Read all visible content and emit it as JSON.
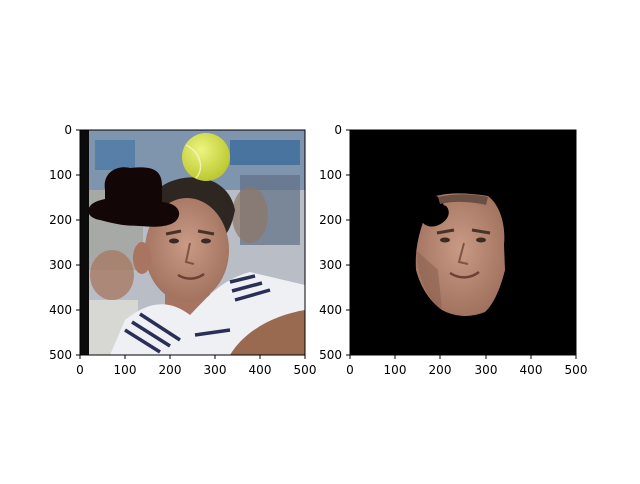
{
  "panels": [
    {
      "name": "left",
      "content": "tennis player photo with hat overlay and tennis ball",
      "x_ticks": [
        "0",
        "100",
        "200",
        "300",
        "400",
        "500"
      ],
      "y_ticks": [
        "0",
        "100",
        "200",
        "300",
        "400",
        "500"
      ],
      "xlim": [
        0,
        500
      ],
      "ylim": [
        500,
        0
      ]
    },
    {
      "name": "right",
      "content": "segmented face on black background",
      "x_ticks": [
        "0",
        "100",
        "200",
        "300",
        "400",
        "500"
      ],
      "y_ticks": [
        "0",
        "100",
        "200",
        "300",
        "400",
        "500"
      ],
      "xlim": [
        0,
        500
      ],
      "ylim": [
        500,
        0
      ]
    }
  ],
  "colors": {
    "background": "#ffffff",
    "mask": "#000000",
    "hat": "#120606",
    "ball": "#d4e04a",
    "skin": "#b98972",
    "shirt": "#eef0f4",
    "stripe": "#2a2f57",
    "crowd_blue": "#4d79a6"
  }
}
